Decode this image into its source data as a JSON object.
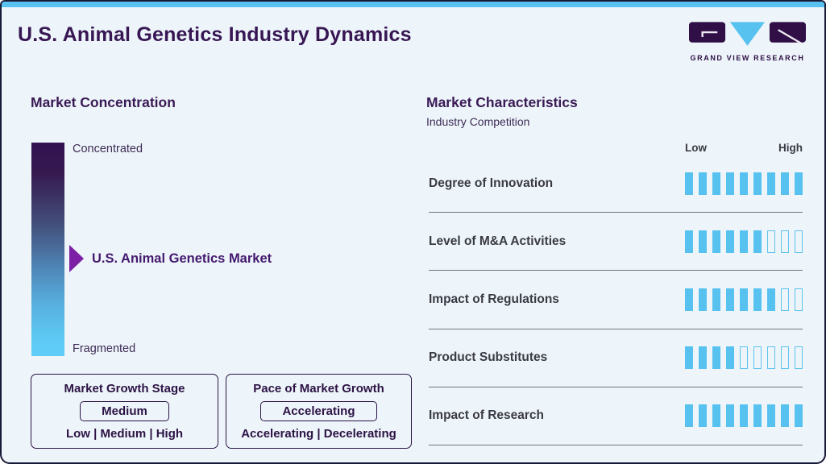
{
  "header": {
    "title": "U.S. Animal Genetics Industry Dynamics",
    "logo_text": "GRAND VIEW RESEARCH"
  },
  "market_concentration": {
    "heading": "Market Concentration",
    "scale_top_label": "Concentrated",
    "scale_bottom_label": "Fragmented",
    "marker_label": "U.S. Animal Genetics Market",
    "boxes": [
      {
        "title": "Market Growth Stage",
        "value": "Medium",
        "options": "Low | Medium | High"
      },
      {
        "title": "Pace of Market Growth",
        "value": "Accelerating",
        "options": "Accelerating | Decelerating"
      }
    ]
  },
  "market_characteristics": {
    "heading": "Market Characteristics",
    "subtitle": "Industry Competition",
    "scale_low_label": "Low",
    "scale_high_label": "High",
    "rows": [
      {
        "label": "Degree of Innovation",
        "filled": 9,
        "total": 9
      },
      {
        "label": "Level of M&A Activities",
        "filled": 6,
        "total": 9
      },
      {
        "label": "Impact of Regulations",
        "filled": 7,
        "total": 9
      },
      {
        "label": "Product Substitutes",
        "filled": 4,
        "total": 9
      },
      {
        "label": "Impact of Research",
        "filled": 9,
        "total": 9
      }
    ]
  },
  "chart_data": {
    "type": "bar",
    "title": "Industry Competition ratings (segments filled out of 9, Low to High)",
    "categories": [
      "Degree of Innovation",
      "Level of M&A Activities",
      "Impact of Regulations",
      "Product Substitutes",
      "Impact of Research"
    ],
    "values": [
      9,
      6,
      7,
      4,
      9
    ],
    "xlabel": "",
    "ylabel": "",
    "ylim": [
      0,
      9
    ]
  },
  "colors": {
    "accent_blue": "#57c2ef",
    "deep_purple": "#371653",
    "arrow_purple": "#7c1fa5",
    "gradient_top": "#321151",
    "gradient_bottom": "#5ecbf5",
    "row_label_gray": "#3a3a44",
    "divider_gray": "#73737c",
    "background": "#edf5fa",
    "border_navy": "#1a1a38"
  }
}
